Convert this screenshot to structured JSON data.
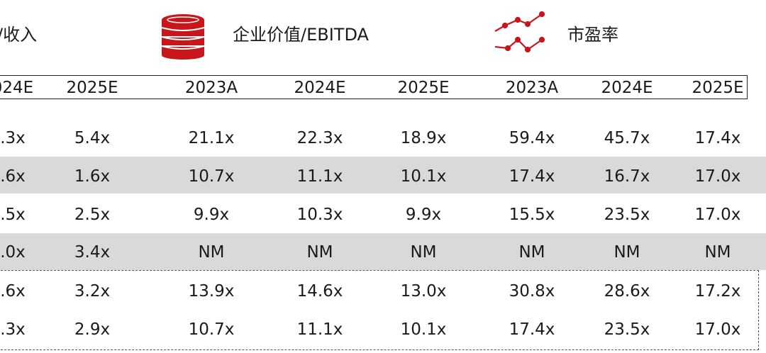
{
  "headers": {
    "revenue_label": "/收入",
    "ev_ebitda_label": "企业价值/EBITDA",
    "pe_label": "市盈率"
  },
  "icons": {
    "coins_icon": "coin-stack-icon",
    "line_icon": "line-chart-icon",
    "accent_color": "#c8161d"
  },
  "years": [
    "024E",
    "2025E",
    "2023A",
    "2024E",
    "2025E",
    "2023A",
    "2024E",
    "2025E"
  ],
  "rows": [
    {
      "shaded": false,
      "cells": [
        ".3x",
        "5.4x",
        "21.1x",
        "22.3x",
        "18.9x",
        "59.4x",
        "45.7x",
        "17.4x"
      ]
    },
    {
      "shaded": true,
      "cells": [
        ".6x",
        "1.6x",
        "10.7x",
        "11.1x",
        "10.1x",
        "17.4x",
        "16.7x",
        "17.0x"
      ]
    },
    {
      "shaded": false,
      "cells": [
        ".5x",
        "2.5x",
        "9.9x",
        "10.3x",
        "9.9x",
        "15.5x",
        "23.5x",
        "17.0x"
      ]
    },
    {
      "shaded": true,
      "cells": [
        ".0x",
        "3.4x",
        "NM",
        "NM",
        "NM",
        "NM",
        "NM",
        "NM"
      ]
    },
    {
      "shaded": false,
      "cells": [
        ".6x",
        "3.2x",
        "13.9x",
        "14.6x",
        "13.0x",
        "30.8x",
        "28.6x",
        "17.2x"
      ]
    },
    {
      "shaded": false,
      "cells": [
        ".3x",
        "2.9x",
        "10.7x",
        "11.1x",
        "10.1x",
        "17.4x",
        "23.5x",
        "17.0x"
      ]
    }
  ]
}
